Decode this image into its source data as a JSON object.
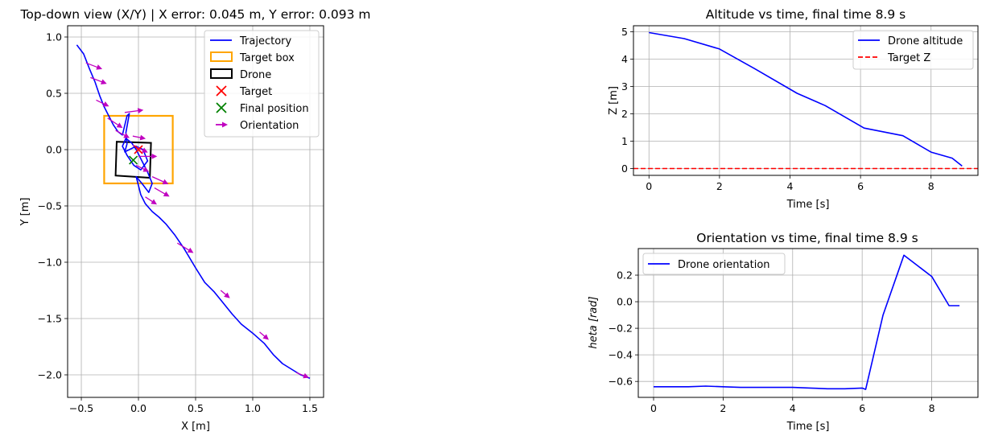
{
  "chart_data": [
    {
      "type": "line",
      "title": "Top-down view (X/Y) | X error: 0.045 m, Y error: 0.093 m",
      "xlabel": "X [m]",
      "ylabel": "Y [m]",
      "xlim": [
        -0.62,
        1.62
      ],
      "ylim": [
        -2.2,
        1.1
      ],
      "xticks": [
        -0.5,
        0.0,
        0.5,
        1.0,
        1.5
      ],
      "xtick_labels": [
        "−0.5",
        "0.0",
        "0.5",
        "1.0",
        "1.5"
      ],
      "yticks": [
        1.0,
        0.5,
        0.0,
        -0.5,
        -1.0,
        -1.5,
        -2.0
      ],
      "ytick_labels": [
        "1.0",
        "0.5",
        "0.0",
        "−0.5",
        "−1.0",
        "−1.5",
        "−2.0"
      ],
      "grid": true,
      "legend_position": "top-right",
      "legend": [
        "Trajectory",
        "Target box",
        "Drone",
        "Target",
        "Final position",
        "Orientation"
      ],
      "series": [
        {
          "name": "Trajectory",
          "color": "#0000ff",
          "x": [
            -0.54,
            -0.48,
            -0.43,
            -0.38,
            -0.34,
            -0.3,
            -0.26,
            -0.22,
            -0.18,
            -0.14,
            -0.1,
            -0.08,
            -0.11,
            -0.1,
            -0.12,
            -0.08,
            -0.02,
            0.04,
            0.08,
            0.02,
            -0.04,
            -0.1,
            -0.14,
            -0.11,
            -0.06,
            -0.02,
            0.02,
            0.08,
            0.12,
            0.09,
            0.03,
            -0.02,
            0.02,
            0.06,
            0.12,
            0.18,
            0.24,
            0.32,
            0.4,
            0.5,
            0.58,
            0.66,
            0.74,
            0.82,
            0.9,
            1.0,
            1.1,
            1.18,
            1.26,
            1.34,
            1.42,
            1.5
          ],
          "y": [
            0.93,
            0.85,
            0.72,
            0.6,
            0.48,
            0.38,
            0.3,
            0.22,
            0.16,
            0.13,
            0.3,
            0.32,
            0.15,
            0.05,
            -0.02,
            0.0,
            0.03,
            0.0,
            -0.1,
            -0.18,
            -0.14,
            -0.05,
            0.03,
            0.1,
            0.06,
            0.0,
            -0.08,
            -0.2,
            -0.3,
            -0.38,
            -0.3,
            -0.24,
            -0.4,
            -0.48,
            -0.55,
            -0.6,
            -0.66,
            -0.76,
            -0.88,
            -1.05,
            -1.18,
            -1.26,
            -1.36,
            -1.46,
            -1.55,
            -1.63,
            -1.72,
            -1.82,
            -1.9,
            -1.95,
            -2.0,
            -2.03
          ]
        }
      ],
      "target_box": {
        "x": [
          -0.3,
          0.3
        ],
        "y": [
          -0.3,
          0.3
        ],
        "color": "#ffa500"
      },
      "drone_box": {
        "corners": [
          [
            -0.2,
            -0.23
          ],
          [
            0.1,
            -0.25
          ],
          [
            0.11,
            0.06
          ],
          [
            -0.19,
            0.07
          ]
        ],
        "color": "#000000"
      },
      "target": {
        "x": 0.0,
        "y": 0.0,
        "color": "#ff0000"
      },
      "final_position": {
        "x": -0.045,
        "y": -0.093,
        "color": "#008000"
      },
      "orientation_color": "#c000c0",
      "orientation_arrows": [
        {
          "x": -0.46,
          "y": 0.77,
          "dx": 0.13,
          "dy": -0.05
        },
        {
          "x": -0.42,
          "y": 0.64,
          "dx": 0.13,
          "dy": -0.05
        },
        {
          "x": -0.37,
          "y": 0.44,
          "dx": 0.1,
          "dy": -0.05
        },
        {
          "x": -0.27,
          "y": 0.28,
          "dx": 0.12,
          "dy": -0.08
        },
        {
          "x": -0.2,
          "y": 0.17,
          "dx": 0.11,
          "dy": -0.06
        },
        {
          "x": -0.12,
          "y": 0.33,
          "dx": 0.15,
          "dy": 0.02
        },
        {
          "x": -0.05,
          "y": 0.12,
          "dx": 0.1,
          "dy": -0.02
        },
        {
          "x": -0.05,
          "y": 0.04,
          "dx": 0.12,
          "dy": -0.06
        },
        {
          "x": 0.0,
          "y": -0.06,
          "dx": 0.15,
          "dy": 0.0
        },
        {
          "x": -0.02,
          "y": -0.14,
          "dx": 0.1,
          "dy": -0.05
        },
        {
          "x": 0.12,
          "y": -0.24,
          "dx": 0.13,
          "dy": -0.06
        },
        {
          "x": 0.14,
          "y": -0.34,
          "dx": 0.12,
          "dy": -0.07
        },
        {
          "x": 0.06,
          "y": -0.42,
          "dx": 0.09,
          "dy": -0.06
        },
        {
          "x": 0.34,
          "y": -0.83,
          "dx": 0.13,
          "dy": -0.08
        },
        {
          "x": 0.72,
          "y": -1.25,
          "dx": 0.07,
          "dy": -0.06
        },
        {
          "x": 1.06,
          "y": -1.62,
          "dx": 0.07,
          "dy": -0.06
        },
        {
          "x": 1.38,
          "y": -1.98,
          "dx": 0.1,
          "dy": -0.04
        }
      ]
    },
    {
      "type": "line",
      "title": "Altitude vs time, final time 8.9 s",
      "xlabel": "Time [s]",
      "ylabel": "Z [m]",
      "xlim": [
        -0.44,
        9.33
      ],
      "ylim": [
        -0.25,
        5.22
      ],
      "xticks": [
        0,
        2,
        4,
        6,
        8
      ],
      "xtick_labels": [
        "0",
        "2",
        "4",
        "6",
        "8"
      ],
      "yticks": [
        0,
        1,
        2,
        3,
        4,
        5
      ],
      "ytick_labels": [
        "0",
        "1",
        "2",
        "3",
        "4",
        "5"
      ],
      "grid": true,
      "legend_position": "top-right",
      "series": [
        {
          "name": "Drone altitude",
          "color": "#0000ff",
          "style": "solid",
          "x": [
            0.0,
            1.0,
            2.0,
            3.0,
            4.2,
            5.0,
            6.1,
            7.2,
            8.0,
            8.6,
            8.88
          ],
          "y": [
            4.97,
            4.75,
            4.37,
            3.65,
            2.75,
            2.3,
            1.48,
            1.2,
            0.6,
            0.38,
            0.09
          ]
        },
        {
          "name": "Target Z",
          "color": "#ff0000",
          "style": "dashed",
          "x": [
            -0.44,
            9.33
          ],
          "y": [
            0.0,
            0.0
          ]
        }
      ]
    },
    {
      "type": "line",
      "title": "Orientation vs time, final time 8.9 s",
      "xlabel": "Time [s]",
      "ylabel": "heta [rad]",
      "xlim": [
        -0.44,
        9.33
      ],
      "ylim": [
        -0.72,
        0.4
      ],
      "xticks": [
        0,
        2,
        4,
        6,
        8
      ],
      "xtick_labels": [
        "0",
        "2",
        "4",
        "6",
        "8"
      ],
      "yticks": [
        0.2,
        0.0,
        -0.2,
        -0.4,
        -0.6
      ],
      "ytick_labels": [
        "0.2",
        "0.0",
        "−0.2",
        "−0.4",
        "−0.6"
      ],
      "grid": true,
      "legend_position": "top-left",
      "series": [
        {
          "name": "Drone orientation",
          "color": "#0000ff",
          "style": "solid",
          "x": [
            0.0,
            0.5,
            1.0,
            1.5,
            2.0,
            2.5,
            3.0,
            3.5,
            4.0,
            4.5,
            5.0,
            5.5,
            6.0,
            6.1,
            6.6,
            7.2,
            7.6,
            8.0,
            8.5,
            8.8
          ],
          "y": [
            -0.64,
            -0.64,
            -0.64,
            -0.635,
            -0.64,
            -0.645,
            -0.645,
            -0.645,
            -0.645,
            -0.65,
            -0.655,
            -0.655,
            -0.65,
            -0.66,
            -0.1,
            0.35,
            0.27,
            0.19,
            -0.03,
            -0.03
          ]
        }
      ]
    }
  ]
}
